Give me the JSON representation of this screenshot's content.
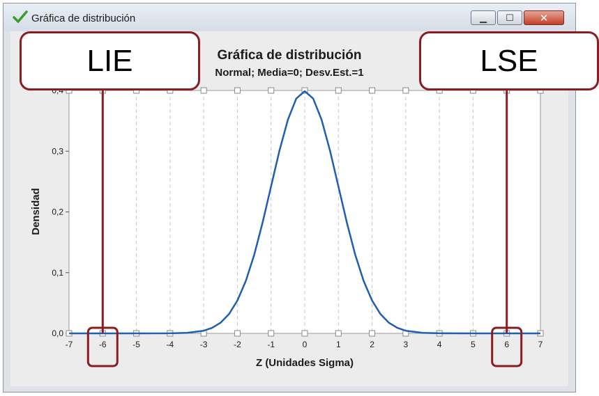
{
  "window": {
    "title": "Gráfica de distribución",
    "app_icon": "green-check-icon",
    "controls": {
      "minimize": "minimize-icon",
      "maximize": "maximize-icon",
      "close": "close-icon"
    }
  },
  "callouts": {
    "lie": "LIE",
    "lse": "LSE"
  },
  "colors": {
    "curve": "#1f5fb0",
    "annotation": "#8b1c22",
    "grid": "#c8c8c8"
  },
  "chart_data": {
    "type": "line",
    "title": "Gráfica de distribución",
    "subtitle": "Normal; Media=0; Desv.Est.=1",
    "xlabel": "Z (Unidades Sigma)",
    "ylabel": "Densidad",
    "xlim": [
      -7,
      7
    ],
    "ylim": [
      0,
      0.4
    ],
    "x_ticks": [
      "-7",
      "-6",
      "-5",
      "-4",
      "-3",
      "-2",
      "-1",
      "0",
      "1",
      "2",
      "3",
      "4",
      "5",
      "6",
      "7"
    ],
    "y_ticks": [
      "0,0",
      "0,1",
      "0,2",
      "0,3",
      "0,4"
    ],
    "grid": "vertical dashed",
    "series": [
      {
        "x": [
          -7,
          -6,
          -5,
          -4,
          -3.5,
          -3,
          -2.75,
          -2.5,
          -2.25,
          -2,
          -1.75,
          -1.5,
          -1.25,
          -1,
          -0.75,
          -0.5,
          -0.25,
          0,
          0.25,
          0.5,
          0.75,
          1,
          1.25,
          1.5,
          1.75,
          2,
          2.25,
          2.5,
          2.75,
          3,
          3.5,
          4,
          5,
          6,
          7
        ],
        "y": [
          0,
          0,
          0,
          0.0001,
          0.0009,
          0.0044,
          0.0091,
          0.0175,
          0.0317,
          0.054,
          0.0863,
          0.1295,
          0.1826,
          0.242,
          0.3011,
          0.3521,
          0.3867,
          0.3989,
          0.3867,
          0.3521,
          0.3011,
          0.242,
          0.1826,
          0.1295,
          0.0863,
          0.054,
          0.0317,
          0.0175,
          0.0091,
          0.0044,
          0.0009,
          0.0001,
          0,
          0,
          0
        ]
      }
    ],
    "annotations": [
      {
        "label": "LIE",
        "x": -6
      },
      {
        "label": "LSE",
        "x": 6
      }
    ]
  }
}
